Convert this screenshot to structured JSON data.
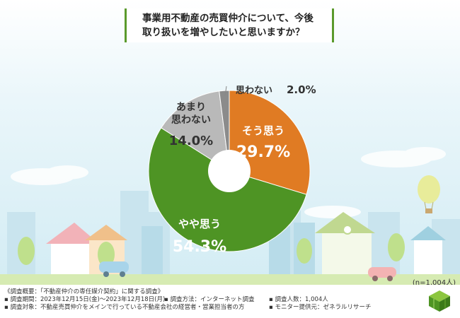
{
  "title": {
    "line1": "事業用不動産の売買仲介について、今後",
    "line2": "取り扱いを増やしたいと思いますか？"
  },
  "chart_data": {
    "type": "pie",
    "donut": true,
    "title": "事業用不動産の売買仲介について、今後取り扱いを増やしたいと思いますか？",
    "slices": [
      {
        "label_lines": [
          "そう思う"
        ],
        "value": 29.7,
        "value_text": "29.7%",
        "color": "#e07b23"
      },
      {
        "label_lines": [
          "やや思う"
        ],
        "value": 54.3,
        "value_text": "54.3%",
        "color": "#4e9424"
      },
      {
        "label_lines": [
          "あまり",
          "思わない"
        ],
        "value": 14.0,
        "value_text": "14.0%",
        "color": "#b9b9b9"
      },
      {
        "label_lines": [
          "思わない"
        ],
        "value": 2.0,
        "value_text": "2.0%",
        "color": "#8b8b8b"
      }
    ]
  },
  "sample_size": "(n=1,004人)",
  "footer": {
    "overview": "《調査概要：「不動産仲介の専任媒介契約」に関する調査》",
    "period": "調査期間：2023年12月15日(金)～2023年12月18日(月)",
    "method": "調査方法：インターネット調査",
    "count": "調査人数：1,004人",
    "target": "調査対象：不動産売買仲介をメインで行っている不動産会社の経営者・営業担当者の方",
    "provider": "モニター提供元：ゼネラルリサーチ"
  },
  "colors": {
    "accent": "#5a9a2c",
    "sky_top": "#d7eef5",
    "grass": "#cfe8a8"
  }
}
